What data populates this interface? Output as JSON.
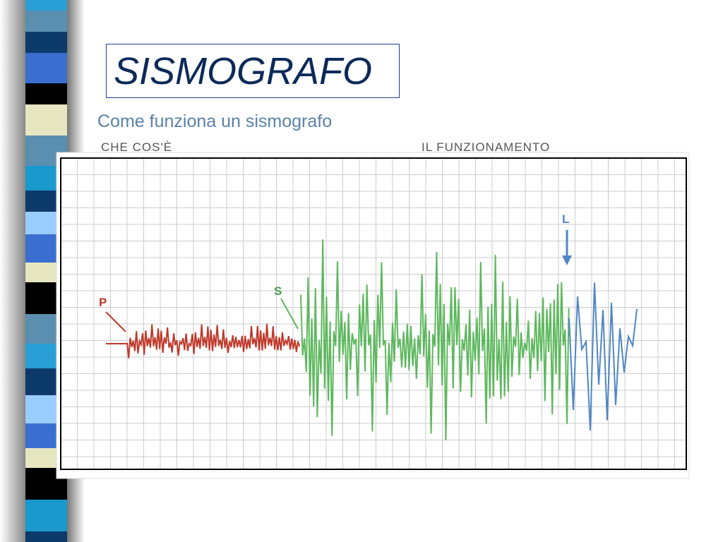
{
  "header": {
    "title": "SISMOGRAFO",
    "subtitle": "Come funziona un sismografo"
  },
  "tabs": [
    "CHE COS'È",
    "IL FUNZIONAMENTO"
  ],
  "figure": {
    "labels": [
      "P",
      "S",
      "L"
    ]
  }
}
